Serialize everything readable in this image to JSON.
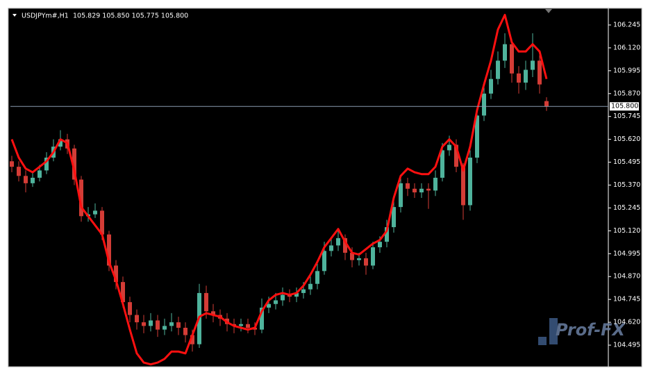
{
  "chart_data": {
    "type": "candlestick",
    "symbol": "USDJPYm#,H1",
    "quote": "105.829 105.850 105.775 105.800",
    "watermark": "Prof-FX",
    "up_color": "#4fb39c",
    "down_color": "#d43c36",
    "ylim": [
      104.385,
      106.336
    ],
    "yticks": [
      106.245,
      {
        "value": 106.12,
        "label": "106.120"
      },
      105.995,
      {
        "value": 105.87,
        "label": "105.870"
      },
      105.745,
      {
        "value": 105.62,
        "label": "105.620"
      },
      105.495,
      {
        "value": 105.37,
        "label": "105.370"
      },
      105.245,
      {
        "value": 105.12,
        "label": "105.120"
      },
      104.995,
      {
        "value": 104.87,
        "label": "104.870"
      },
      104.745,
      {
        "value": 104.62,
        "label": "104.620"
      },
      104.495
    ],
    "current_price": {
      "value": 105.8,
      "label": "105.800"
    },
    "open": [
      105.5,
      105.47,
      105.42,
      105.38,
      105.41,
      105.45,
      105.52,
      105.58,
      105.62,
      105.57,
      105.4,
      105.2,
      105.21,
      105.23,
      105.1,
      104.93,
      104.84,
      104.73,
      104.66,
      104.62,
      104.6,
      104.63,
      104.58,
      104.6,
      104.62,
      104.59,
      104.55,
      104.5,
      104.78,
      104.68,
      104.66,
      104.64,
      104.61,
      104.6,
      104.61,
      104.59,
      104.58,
      104.7,
      104.72,
      104.74,
      104.77,
      104.76,
      104.78,
      104.8,
      104.83,
      104.9,
      105.01,
      105.04,
      105.08,
      105.0,
      104.96,
      104.97,
      104.93,
      105.03,
      105.06,
      105.14,
      105.25,
      105.38,
      105.35,
      105.33,
      105.35,
      105.34,
      105.41,
      105.56,
      105.59,
      105.47,
      105.26,
      105.52,
      105.75,
      105.87,
      105.95,
      106.05,
      106.14,
      105.98,
      105.93,
      106.0,
      106.05,
      105.829
    ],
    "high": [
      105.53,
      105.5,
      105.45,
      105.44,
      105.48,
      105.55,
      105.62,
      105.67,
      105.65,
      105.59,
      105.42,
      105.25,
      105.27,
      105.25,
      105.12,
      104.96,
      104.87,
      104.76,
      104.69,
      104.66,
      104.67,
      104.66,
      104.64,
      104.67,
      104.65,
      104.62,
      104.58,
      104.83,
      104.82,
      104.72,
      104.69,
      104.67,
      104.64,
      104.64,
      104.64,
      104.62,
      104.75,
      104.76,
      104.78,
      104.81,
      104.8,
      104.81,
      104.84,
      104.87,
      104.94,
      105.06,
      105.08,
      105.13,
      105.1,
      105.03,
      105.0,
      105.0,
      105.06,
      105.09,
      105.18,
      105.29,
      105.42,
      105.41,
      105.38,
      105.38,
      105.38,
      105.45,
      105.6,
      105.64,
      105.62,
      105.49,
      105.56,
      105.79,
      105.92,
      106.0,
      106.1,
      106.2,
      106.17,
      106.02,
      106.05,
      106.2,
      106.08,
      105.85
    ],
    "low": [
      105.44,
      105.39,
      105.33,
      105.36,
      105.39,
      105.43,
      105.5,
      105.56,
      105.54,
      105.37,
      105.17,
      105.17,
      105.19,
      105.07,
      104.9,
      104.8,
      104.7,
      104.62,
      104.58,
      104.56,
      104.57,
      104.54,
      104.55,
      104.57,
      104.55,
      104.51,
      104.46,
      104.48,
      104.64,
      104.62,
      104.6,
      104.57,
      104.56,
      104.57,
      104.56,
      104.55,
      104.56,
      104.67,
      104.69,
      104.71,
      104.73,
      104.73,
      104.75,
      104.77,
      104.8,
      104.88,
      104.98,
      105.01,
      104.96,
      104.92,
      104.93,
      104.88,
      104.91,
      105.0,
      105.03,
      105.11,
      105.22,
      105.31,
      105.3,
      105.3,
      105.24,
      105.31,
      105.39,
      105.53,
      105.44,
      105.18,
      105.23,
      105.49,
      105.72,
      105.84,
      105.92,
      106.01,
      105.93,
      105.87,
      105.89,
      105.96,
      105.87,
      105.775
    ],
    "close": [
      105.47,
      105.42,
      105.38,
      105.41,
      105.45,
      105.52,
      105.58,
      105.62,
      105.57,
      105.4,
      105.2,
      105.21,
      105.23,
      105.1,
      104.93,
      104.84,
      104.73,
      104.66,
      104.62,
      104.6,
      104.63,
      104.58,
      104.6,
      104.62,
      104.59,
      104.55,
      104.5,
      104.78,
      104.68,
      104.66,
      104.64,
      104.61,
      104.6,
      104.61,
      104.59,
      104.58,
      104.7,
      104.72,
      104.74,
      104.77,
      104.76,
      104.78,
      104.8,
      104.83,
      104.9,
      105.01,
      105.04,
      105.08,
      105.0,
      104.96,
      104.97,
      104.93,
      105.03,
      105.06,
      105.14,
      105.25,
      105.38,
      105.35,
      105.33,
      105.35,
      105.34,
      105.41,
      105.56,
      105.59,
      105.47,
      105.26,
      105.52,
      105.75,
      105.87,
      105.95,
      106.05,
      106.14,
      105.98,
      105.93,
      106.0,
      106.05,
      105.92,
      105.8
    ],
    "ma": {
      "color": "#ff1010",
      "values": [
        105.62,
        105.52,
        105.46,
        105.44,
        105.47,
        105.5,
        105.55,
        105.62,
        105.6,
        105.45,
        105.25,
        105.2,
        105.15,
        105.1,
        104.95,
        104.85,
        104.72,
        104.58,
        104.45,
        104.4,
        104.39,
        104.4,
        104.42,
        104.46,
        104.46,
        104.45,
        104.55,
        104.65,
        104.67,
        104.66,
        104.65,
        104.62,
        104.6,
        104.59,
        104.58,
        104.59,
        104.68,
        104.74,
        104.77,
        104.78,
        104.77,
        104.78,
        104.82,
        104.88,
        104.95,
        105.03,
        105.08,
        105.13,
        105.06,
        105.0,
        104.99,
        105.02,
        105.05,
        105.07,
        105.12,
        105.3,
        105.42,
        105.46,
        105.44,
        105.43,
        105.43,
        105.47,
        105.58,
        105.62,
        105.58,
        105.45,
        105.58,
        105.78,
        105.92,
        106.05,
        106.22,
        106.3,
        106.15,
        106.1,
        106.1,
        106.14,
        106.1,
        105.95
      ]
    }
  }
}
